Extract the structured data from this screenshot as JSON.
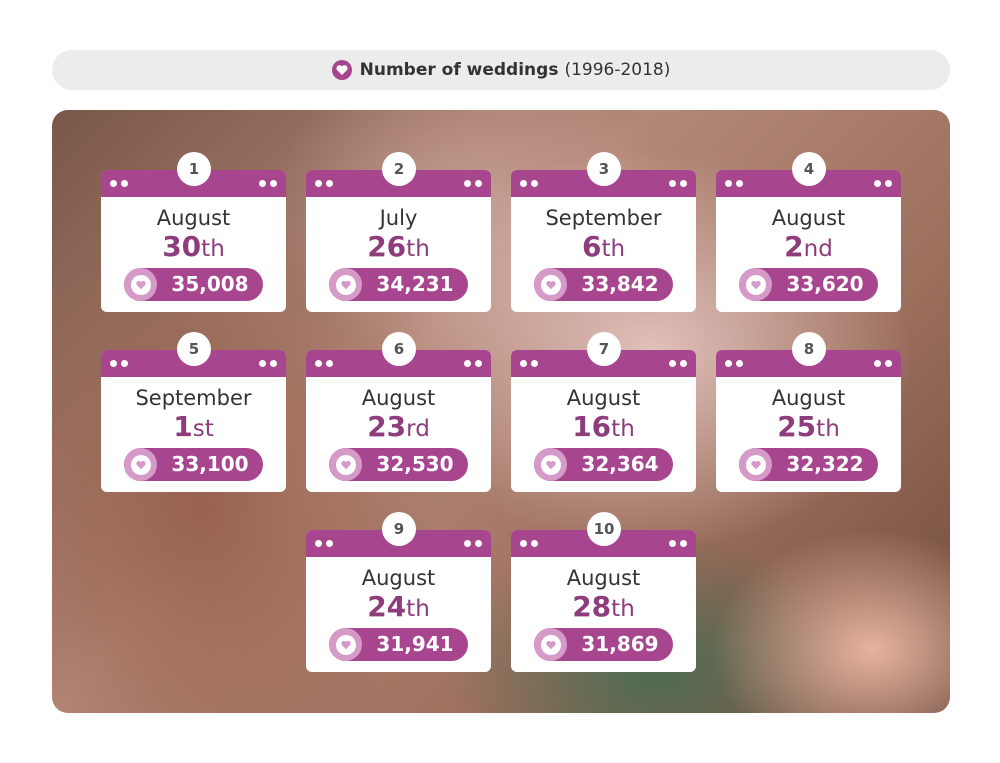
{
  "header": {
    "title": "Number of weddings",
    "subtitle": "(1996-2018)"
  },
  "cards": [
    {
      "rank": 1,
      "month": "August",
      "day": 30,
      "suffix": "th",
      "count": "35,008"
    },
    {
      "rank": 2,
      "month": "July",
      "day": 26,
      "suffix": "th",
      "count": "34,231"
    },
    {
      "rank": 3,
      "month": "September",
      "day": 6,
      "suffix": "th",
      "count": "33,842"
    },
    {
      "rank": 4,
      "month": "August",
      "day": 2,
      "suffix": "nd",
      "count": "33,620"
    },
    {
      "rank": 5,
      "month": "September",
      "day": 1,
      "suffix": "st",
      "count": "33,100"
    },
    {
      "rank": 6,
      "month": "August",
      "day": 23,
      "suffix": "rd",
      "count": "32,530"
    },
    {
      "rank": 7,
      "month": "August",
      "day": 16,
      "suffix": "th",
      "count": "32,364"
    },
    {
      "rank": 8,
      "month": "August",
      "day": 25,
      "suffix": "th",
      "count": "32,322"
    },
    {
      "rank": 9,
      "month": "August",
      "day": 24,
      "suffix": "th",
      "count": "31,941"
    },
    {
      "rank": 10,
      "month": "August",
      "day": 28,
      "suffix": "th",
      "count": "31,869"
    }
  ]
}
